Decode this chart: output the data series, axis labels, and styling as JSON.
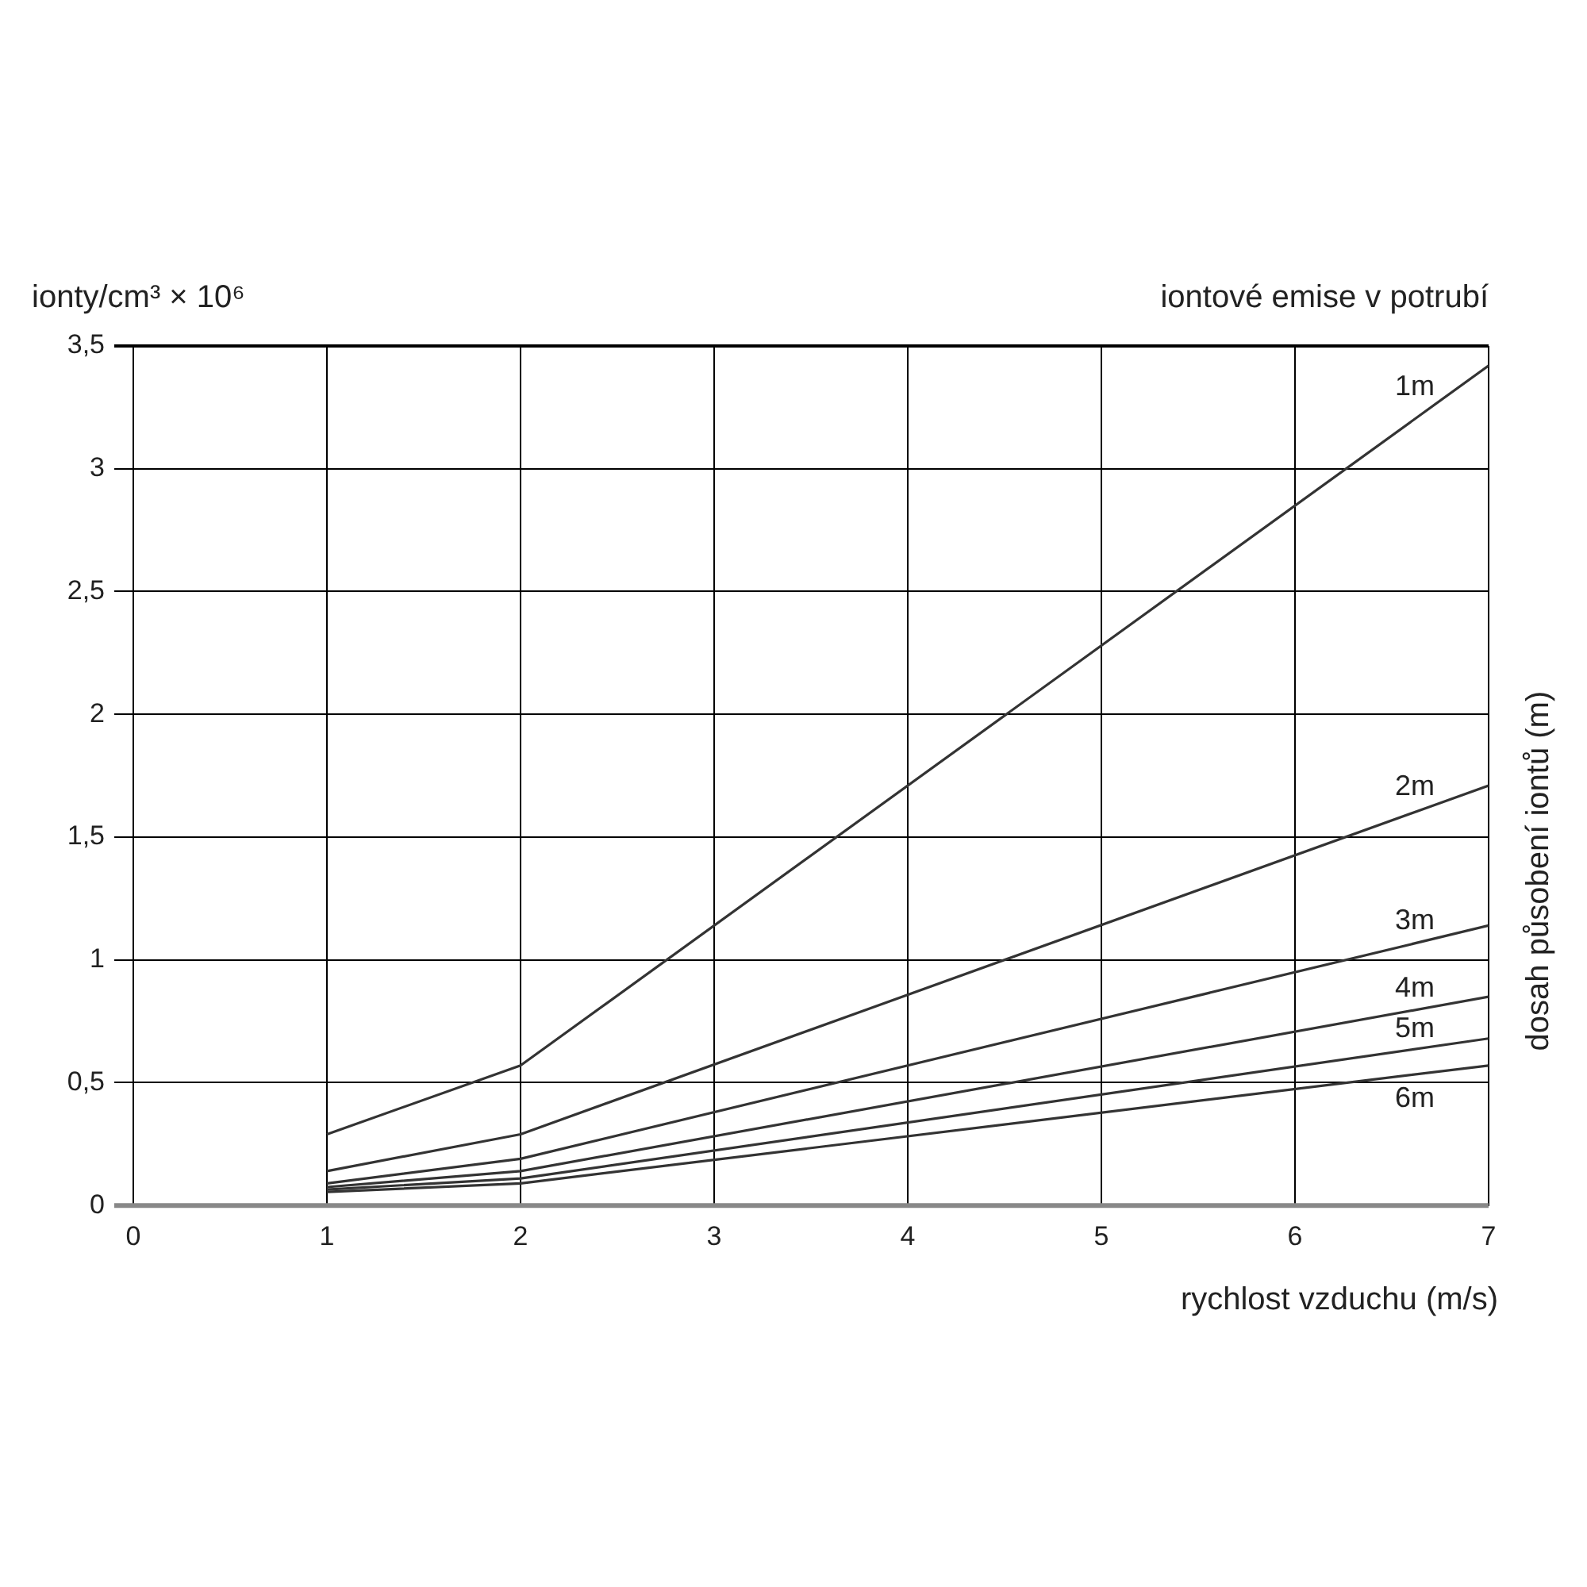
{
  "chart_data": {
    "type": "line",
    "title": "iontové emise v potrubí",
    "xlabel": "rychlost vzduchu (m/s)",
    "ylabel": "ionty/cm³ × 10⁶",
    "y2label": "dosah působení iontů (m)",
    "x": [
      1,
      2,
      7
    ],
    "series": [
      {
        "name": "1m",
        "color": "#333333",
        "values": [
          0.29,
          0.57,
          3.42
        ]
      },
      {
        "name": "2m",
        "color": "#333333",
        "values": [
          0.14,
          0.29,
          1.71
        ]
      },
      {
        "name": "3m",
        "color": "#333333",
        "values": [
          0.09,
          0.19,
          1.14
        ]
      },
      {
        "name": "4m",
        "color": "#333333",
        "values": [
          0.075,
          0.14,
          0.85
        ]
      },
      {
        "name": "5m",
        "color": "#333333",
        "values": [
          0.065,
          0.11,
          0.68
        ]
      },
      {
        "name": "6m",
        "color": "#333333",
        "values": [
          0.055,
          0.09,
          0.57
        ]
      }
    ],
    "xlim": [
      0,
      7
    ],
    "xticks": [
      0,
      1,
      2,
      3,
      4,
      5,
      6,
      7
    ],
    "ylim": [
      0,
      3.5
    ],
    "yticks": [
      0,
      {
        "value": 0.5,
        "label": "0,5"
      },
      1,
      {
        "value": 1.5,
        "label": "1,5"
      },
      2,
      {
        "value": 2.5,
        "label": "2,5"
      },
      3,
      {
        "value": 3.5,
        "label": "3,5"
      }
    ],
    "grid": true,
    "legend": false,
    "marker": "none",
    "line_style": "solid"
  }
}
